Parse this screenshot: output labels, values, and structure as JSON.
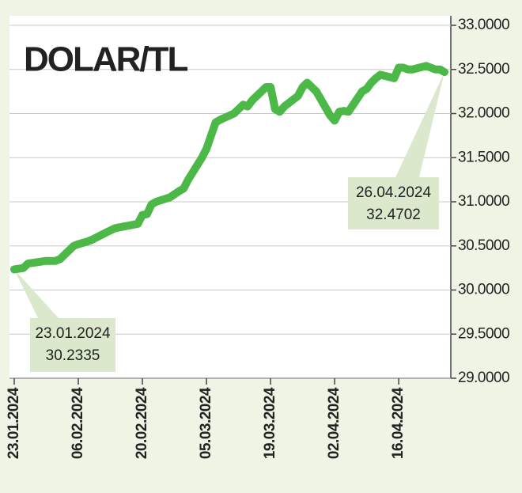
{
  "chart_data": {
    "type": "line",
    "title": "DOLAR/TL",
    "x": [
      "23.01.2024",
      "25.01.2024",
      "26.01.2024",
      "30.01.2024",
      "01.02.2024",
      "02.02.2024",
      "05.02.2024",
      "06.02.2024",
      "08.02.2024",
      "09.02.2024",
      "12.02.2024",
      "14.02.2024",
      "16.02.2024",
      "19.02.2024",
      "20.02.2024",
      "21.02.2024",
      "22.02.2024",
      "23.02.2024",
      "26.02.2024",
      "28.02.2024",
      "29.02.2024",
      "01.03.2024",
      "04.03.2024",
      "05.03.2024",
      "06.03.2024",
      "07.03.2024",
      "08.03.2024",
      "11.03.2024",
      "12.03.2024",
      "13.03.2024",
      "14.03.2024",
      "15.03.2024",
      "18.03.2024",
      "19.03.2024",
      "20.03.2024",
      "21.03.2024",
      "22.03.2024",
      "25.03.2024",
      "26.03.2024",
      "27.03.2024",
      "28.03.2024",
      "29.03.2024",
      "01.04.2024",
      "02.04.2024",
      "03.04.2024",
      "04.04.2024",
      "05.04.2024",
      "08.04.2024",
      "09.04.2024",
      "10.04.2024",
      "11.04.2024",
      "12.04.2024",
      "15.04.2024",
      "16.04.2024",
      "17.04.2024",
      "18.04.2024",
      "19.04.2024",
      "22.04.2024",
      "23.04.2024",
      "24.04.2024",
      "25.04.2024",
      "26.04.2024"
    ],
    "values": [
      30.2335,
      30.25,
      30.3,
      30.33,
      30.33,
      30.35,
      30.5,
      30.52,
      30.55,
      30.57,
      30.65,
      30.7,
      30.72,
      30.75,
      30.85,
      30.86,
      30.97,
      31.0,
      31.05,
      31.12,
      31.15,
      31.25,
      31.5,
      31.6,
      31.75,
      31.9,
      31.93,
      32.0,
      32.05,
      32.1,
      32.08,
      32.15,
      32.3,
      32.3,
      32.05,
      32.02,
      32.08,
      32.2,
      32.3,
      32.35,
      32.3,
      32.25,
      31.98,
      31.92,
      32.02,
      32.03,
      32.02,
      32.25,
      32.28,
      32.35,
      32.4,
      32.44,
      32.4,
      32.52,
      32.52,
      32.5,
      32.5,
      32.54,
      32.52,
      32.5,
      32.5,
      32.4702
    ],
    "color": "#4cb848",
    "xlim": [
      "23.01.2024",
      "26.04.2024"
    ],
    "xticks": [
      "23.01.2024",
      "06.02.2024",
      "20.02.2024",
      "05.03.2024",
      "19.03.2024",
      "02.04.2024",
      "16.04.2024"
    ],
    "ylim": [
      29,
      33
    ],
    "yticks": [
      {
        "value": 29,
        "label": "29.0000"
      },
      {
        "value": 29.5,
        "label": "29.5000"
      },
      {
        "value": 30,
        "label": "30.0000"
      },
      {
        "value": 30.5,
        "label": "30.5000"
      },
      {
        "value": 31,
        "label": "31.0000"
      },
      {
        "value": 31.5,
        "label": "31.5000"
      },
      {
        "value": 32,
        "label": "32.0000"
      },
      {
        "value": 32.5,
        "label": "32.5000"
      },
      {
        "value": 33,
        "label": "33.0000"
      }
    ],
    "grid": true
  }
}
